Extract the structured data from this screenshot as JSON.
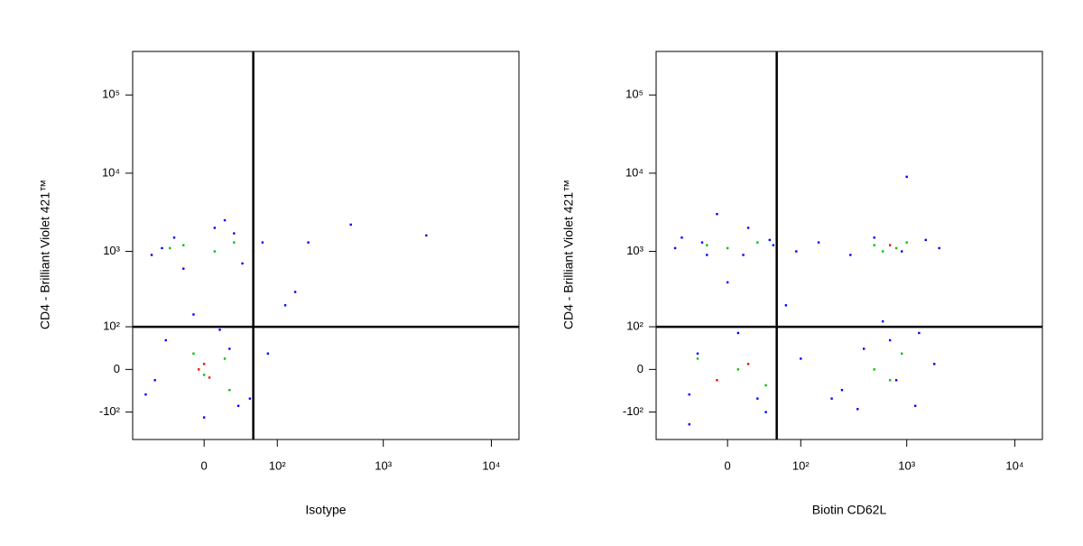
{
  "chart_data": [
    {
      "type": "scatter",
      "xscale": "biexponential",
      "yscale": "biexponential",
      "xlabel": "Isotype",
      "ylabel": "CD4 - Brilliant Violet 421™",
      "xlim": [
        -96,
        18000
      ],
      "ylim": [
        -240,
        360000
      ],
      "xticks": [
        0,
        {
          "value": 100,
          "label": "10²"
        },
        {
          "value": 1000,
          "label": "10³"
        },
        {
          "value": 10000,
          "label": "10⁴"
        }
      ],
      "yticks": [
        {
          "value": -100,
          "label": "-10²"
        },
        0,
        {
          "value": 100,
          "label": "10²"
        },
        {
          "value": 1000,
          "label": "10³"
        },
        {
          "value": 10000,
          "label": "10⁴"
        },
        {
          "value": 100000,
          "label": "10⁵"
        }
      ],
      "gate": {
        "x": 55,
        "y": 100
      },
      "series": [
        {
          "color": "#0000ff",
          "x": [
            -60,
            -30,
            10,
            40,
            70,
            -45,
            20,
            55,
            -20,
            30,
            -70,
            -40,
            0,
            35,
            80,
            -55,
            15,
            50,
            -10,
            25,
            120,
            150,
            500,
            2500,
            200
          ],
          "y": [
            900,
            1500,
            2000,
            700,
            1300,
            1100,
            2500,
            1000,
            600,
            1700,
            -50,
            60,
            -120,
            -80,
            30,
            -20,
            90,
            -60,
            150,
            40,
            200,
            300,
            2200,
            1600,
            1300
          ]
        },
        {
          "color": "#00c000",
          "x": [
            -20,
            10,
            30,
            -35,
            0,
            20,
            -10,
            25
          ],
          "y": [
            1200,
            1000,
            1300,
            1100,
            -10,
            20,
            30,
            -40
          ]
        },
        {
          "color": "#ff0000",
          "x": [
            -5,
            5,
            0
          ],
          "y": [
            0,
            -15,
            10
          ]
        }
      ]
    },
    {
      "type": "scatter",
      "xscale": "biexponential",
      "yscale": "biexponential",
      "xlabel": "Biotin CD62L",
      "ylabel": "CD4 - Brilliant Violet 421™",
      "xlim": [
        -96,
        18000
      ],
      "ylim": [
        -240,
        360000
      ],
      "xticks": [
        0,
        {
          "value": 100,
          "label": "10²"
        },
        {
          "value": 1000,
          "label": "10³"
        },
        {
          "value": 10000,
          "label": "10⁴"
        }
      ],
      "yticks": [
        {
          "value": -100,
          "label": "-10²"
        },
        0,
        {
          "value": 100,
          "label": "10²"
        },
        {
          "value": 1000,
          "label": "10³"
        },
        {
          "value": 10000,
          "label": "10⁴"
        },
        {
          "value": 100000,
          "label": "10⁵"
        }
      ],
      "gate": {
        "x": 55,
        "y": 100
      },
      "series": [
        {
          "color": "#0000ff",
          "x": [
            -50,
            -20,
            20,
            50,
            -40,
            10,
            40,
            -30,
            30,
            0,
            150,
            300,
            500,
            900,
            1500,
            2000,
            250,
            700,
            1200,
            100,
            200,
            400,
            800,
            1300,
            1800,
            350,
            600,
            -60,
            -25,
            15,
            45,
            -10,
            70,
            90,
            -40,
            1000
          ],
          "y": [
            1500,
            900,
            2000,
            1200,
            -50,
            80,
            -100,
            30,
            -60,
            400,
            1300,
            900,
            1500,
            1000,
            1400,
            1100,
            -40,
            60,
            -80,
            20,
            -60,
            40,
            -20,
            80,
            10,
            -90,
            120,
            1100,
            1300,
            900,
            1400,
            3000,
            200,
            1000,
            -150,
            9000
          ]
        },
        {
          "color": "#00c000",
          "x": [
            0,
            30,
            -20,
            500,
            800,
            1000,
            600,
            10,
            -30,
            40,
            500,
            900,
            700
          ],
          "y": [
            1100,
            1300,
            1200,
            1200,
            1100,
            1300,
            1000,
            0,
            20,
            -30,
            0,
            30,
            -20
          ]
        },
        {
          "color": "#ff0000",
          "x": [
            700,
            20,
            -10
          ],
          "y": [
            1200,
            10,
            -20
          ]
        }
      ]
    }
  ]
}
